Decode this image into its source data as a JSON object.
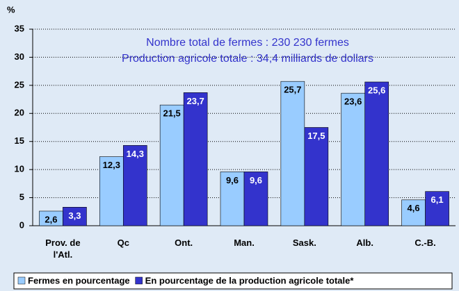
{
  "chart_data": {
    "type": "bar",
    "y_label": "%",
    "annotations": [
      "Nombre total de fermes : 230 230 fermes",
      "Production agricole totale : 34,4 milliards de dollars"
    ],
    "categories": [
      "Prov. de l'Atl.",
      "Qc",
      "Ont.",
      "Man.",
      "Sask.",
      "Alb.",
      "C.-B."
    ],
    "series": [
      {
        "name": "Fermes en pourcentage",
        "color": "#99ccff",
        "values": [
          2.6,
          12.3,
          21.5,
          9.6,
          25.7,
          23.6,
          4.6
        ],
        "value_labels": [
          "2,6",
          "12,3",
          "21,5",
          "9,6",
          "25,7",
          "23,6",
          "4,6"
        ]
      },
      {
        "name": "En pourcentage de la production agricole totale*",
        "color": "#3333cc",
        "values": [
          3.3,
          14.3,
          23.7,
          9.6,
          17.5,
          25.6,
          6.1
        ],
        "value_labels": [
          "3,3",
          "14,3",
          "23,7",
          "9,6",
          "17,5",
          "25,6",
          "6,1"
        ]
      }
    ],
    "ylim": [
      0,
      35
    ],
    "yticks": [
      0,
      5,
      10,
      15,
      20,
      25,
      30,
      35
    ],
    "grid": true
  }
}
